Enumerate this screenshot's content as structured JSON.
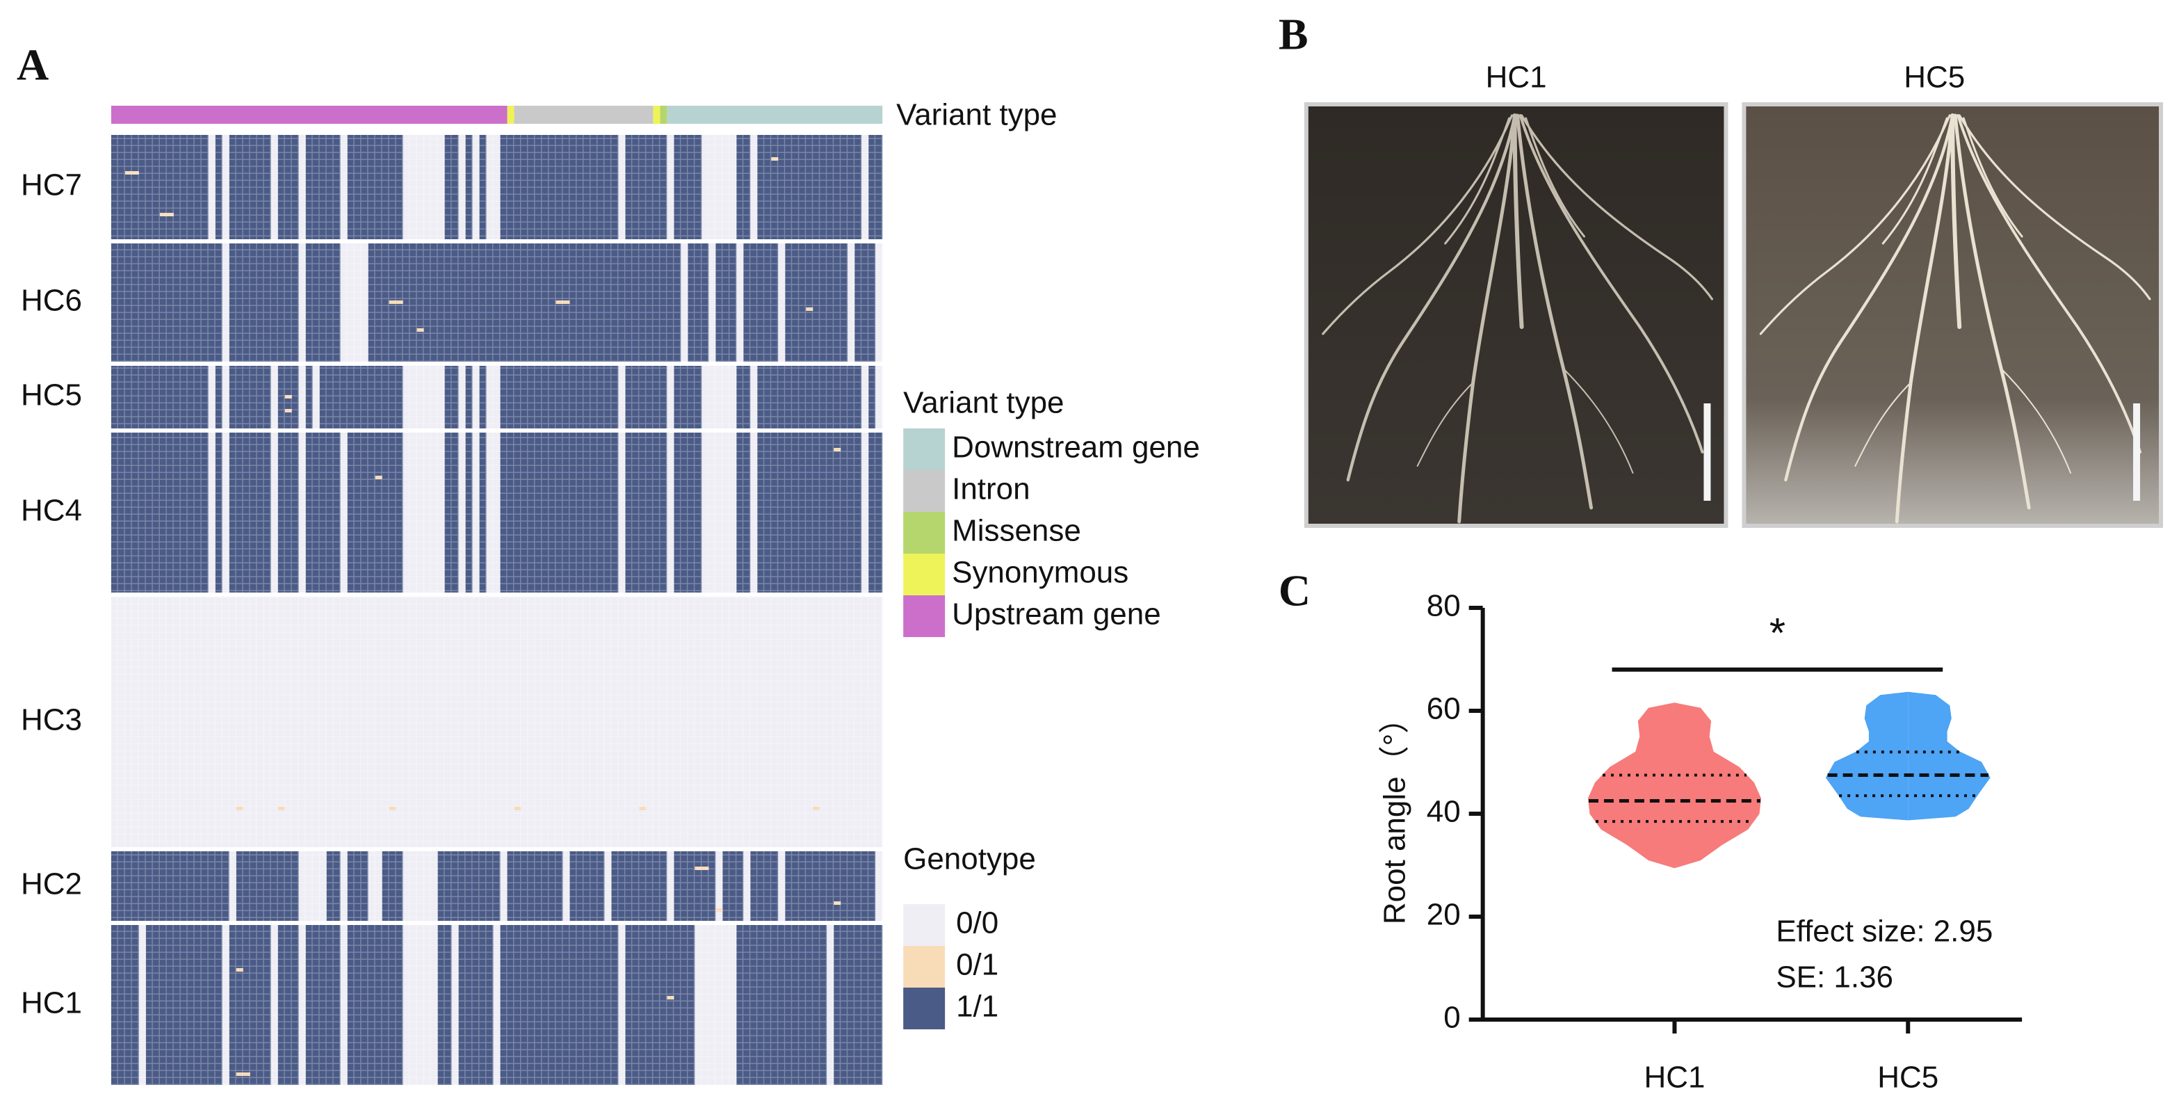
{
  "figure": {
    "panel_labels": [
      "A",
      "B",
      "C"
    ],
    "photos": [
      "HC1",
      "HC5"
    ]
  },
  "chart_data": [
    {
      "type": "heatmap",
      "track_label": "Variant type",
      "variant_types": {
        "title": "Variant type",
        "names": [
          "Downstream gene",
          "Intron",
          "Missense",
          "Synonymous",
          "Upstream gene"
        ],
        "colors": [
          "#b7d3d1",
          "#c9c9c9",
          "#b5d66c",
          "#eef35a",
          "#cc6fcb"
        ]
      },
      "variant_track": [
        {
          "type": 4,
          "count": 57
        },
        {
          "type": 3,
          "count": 1
        },
        {
          "type": 1,
          "count": 20
        },
        {
          "type": 3,
          "count": 1
        },
        {
          "type": 2,
          "count": 1
        },
        {
          "type": 0,
          "count": 31
        }
      ],
      "genotype_legend": {
        "title": "Genotype",
        "levels": [
          "0/0",
          "0/1",
          "1/1"
        ],
        "colors": [
          "#efeef5",
          "#f8dcb8",
          "#4b5b87"
        ]
      },
      "groups": [
        {
          "name": "HC7",
          "samples": 15,
          "base_call": 2,
          "ref_variants": [
            14,
            16,
            23,
            27,
            33,
            42,
            43,
            44,
            45,
            46,
            47,
            50,
            52,
            54,
            55,
            73,
            80,
            85,
            86,
            87,
            88,
            89,
            92,
            108
          ],
          "het_cells": [
            [
              5,
              2
            ],
            [
              5,
              3
            ],
            [
              11,
              7
            ],
            [
              11,
              8
            ],
            [
              3,
              95
            ]
          ]
        },
        {
          "name": "HC6",
          "samples": 17,
          "base_call": 2,
          "ref_variants": [
            16,
            27,
            33,
            34,
            35,
            36,
            82,
            86,
            90,
            96,
            106,
            110
          ],
          "het_cells": [
            [
              8,
              40
            ],
            [
              8,
              41
            ],
            [
              8,
              64
            ],
            [
              8,
              65
            ],
            [
              9,
              100
            ],
            [
              12,
              44
            ]
          ]
        },
        {
          "name": "HC5",
          "samples": 9,
          "base_call": 2,
          "ref_variants": [
            14,
            16,
            23,
            27,
            29,
            42,
            43,
            44,
            45,
            46,
            47,
            50,
            52,
            54,
            55,
            73,
            80,
            85,
            86,
            87,
            88,
            89,
            92,
            108,
            110
          ],
          "het_cells": [
            [
              4,
              25
            ],
            [
              6,
              25
            ]
          ]
        },
        {
          "name": "HC4",
          "samples": 23,
          "base_call": 2,
          "ref_variants": [
            14,
            16,
            23,
            27,
            33,
            42,
            43,
            44,
            45,
            46,
            47,
            50,
            52,
            54,
            55,
            73,
            80,
            85,
            86,
            87,
            88,
            89,
            92,
            108
          ],
          "het_cells": [
            [
              6,
              38
            ],
            [
              2,
              104
            ]
          ]
        },
        {
          "name": "HC3",
          "samples": 36,
          "base_call": 0,
          "ref_variants": [],
          "het_cells": [
            [
              30,
              18
            ],
            [
              30,
              24
            ],
            [
              30,
              40
            ],
            [
              30,
              58
            ],
            [
              30,
              76
            ],
            [
              30,
              101
            ]
          ]
        },
        {
          "name": "HC2",
          "samples": 10,
          "base_call": 2,
          "ref_variants": [
            17,
            27,
            28,
            29,
            30,
            33,
            37,
            38,
            42,
            43,
            44,
            45,
            46,
            56,
            65,
            71,
            80,
            87,
            91,
            96,
            110
          ],
          "het_cells": [
            [
              2,
              84
            ],
            [
              2,
              85
            ],
            [
              7,
              104
            ],
            [
              8,
              87
            ]
          ]
        },
        {
          "name": "HC1",
          "samples": 23,
          "base_call": 2,
          "ref_variants": [
            4,
            16,
            23,
            27,
            33,
            42,
            43,
            44,
            45,
            46,
            49,
            55,
            73,
            84,
            85,
            86,
            87,
            88,
            89,
            103
          ],
          "het_cells": [
            [
              6,
              18
            ],
            [
              21,
              18
            ],
            [
              21,
              19
            ],
            [
              10,
              80
            ]
          ]
        }
      ]
    },
    {
      "type": "violin",
      "y_label": "Root angle（°）",
      "categories": [
        "HC1",
        "HC5"
      ],
      "colors": [
        "#f77b7b",
        "#4ea4f5"
      ],
      "ylim": [
        0,
        80
      ],
      "yticks": [
        0,
        20,
        40,
        60,
        80
      ],
      "violins": [
        {
          "density_y": [
            29.5,
            31,
            34,
            37,
            40,
            43,
            46,
            49,
            52,
            55,
            58,
            60.5,
            61.5
          ],
          "density": [
            0,
            0.3,
            0.55,
            0.85,
            0.98,
            1.0,
            0.92,
            0.75,
            0.45,
            0.4,
            0.42,
            0.3,
            0
          ],
          "median": 42.5,
          "quartiles": [
            38.5,
            47.5
          ]
        },
        {
          "density_y": [
            38.8,
            39.5,
            41,
            44,
            47,
            50,
            52,
            54,
            56,
            58.5,
            61,
            63,
            63.6
          ],
          "density": [
            0,
            0.55,
            0.7,
            0.82,
            0.95,
            0.85,
            0.6,
            0.45,
            0.45,
            0.5,
            0.48,
            0.32,
            0
          ],
          "median": 47.5,
          "quartiles": [
            43.5,
            52
          ]
        }
      ],
      "significance": {
        "label": "*",
        "y": 68
      },
      "annotations": [
        "Effect size: 2.95",
        "SE: 1.36"
      ]
    }
  ]
}
